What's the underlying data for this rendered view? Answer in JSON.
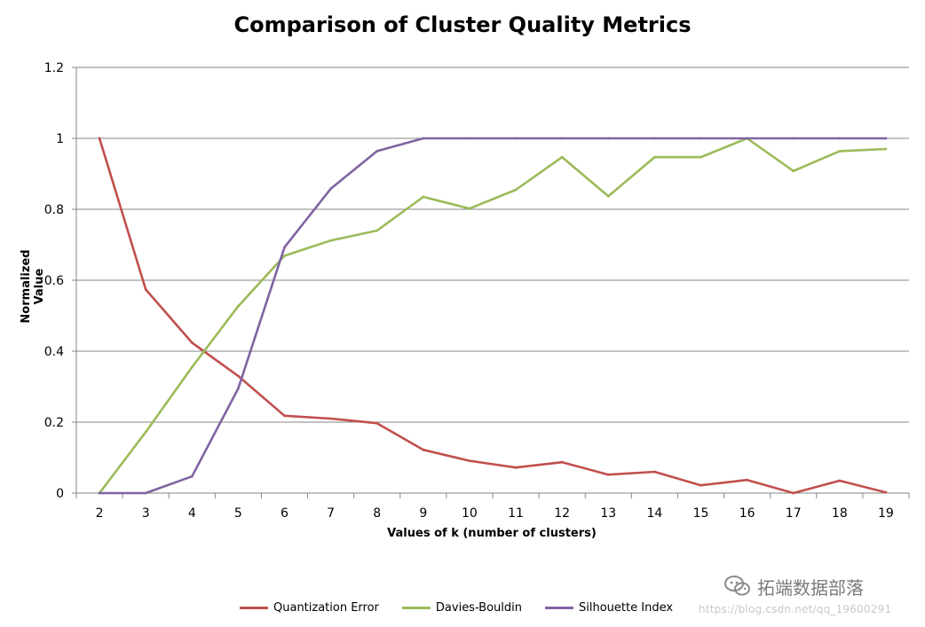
{
  "chart_data": {
    "type": "line",
    "title": "Comparison of Cluster Quality Metrics",
    "xlabel": "Values of k (number of clusters)",
    "ylabel": "Normalized Value",
    "ylim": [
      0,
      1.2
    ],
    "yticks": [
      0,
      0.2,
      0.4,
      0.6,
      0.8,
      1,
      1.2
    ],
    "ytick_labels": [
      "0",
      "0.2",
      "0.4",
      "0.6",
      "0.8",
      "1",
      "1.2"
    ],
    "grid": true,
    "legend_position": "bottom",
    "categories": [
      "2",
      "3",
      "4",
      "5",
      "6",
      "7",
      "8",
      "9",
      "10",
      "11",
      "12",
      "13",
      "14",
      "15",
      "16",
      "17",
      "18",
      "19"
    ],
    "series": [
      {
        "name": "Quantization Error",
        "color": "#C0504D",
        "values": [
          1,
          0.574,
          0.424,
          0.33,
          0.218,
          0.21,
          0.197,
          0.122,
          0.091,
          0.072,
          0.087,
          0.052,
          0.06,
          0.022,
          0.037,
          0.0,
          0.035,
          0.002
        ]
      },
      {
        "name": "Davies-Bouldin",
        "color": "#9BBB59",
        "values": [
          0,
          0.172,
          0.355,
          0.527,
          0.669,
          0.712,
          0.74,
          0.835,
          0.802,
          0.855,
          0.947,
          0.837,
          0.947,
          0.947,
          1,
          0.908,
          0.964,
          0.97
        ]
      },
      {
        "name": "Silhouette Index",
        "color": "#8064A2",
        "values": [
          0,
          0,
          0.047,
          0.295,
          0.693,
          0.858,
          0.964,
          1,
          1,
          1,
          1,
          1,
          1,
          1,
          1,
          1,
          1,
          1
        ]
      }
    ],
    "grid_color": "#868686",
    "axis_color": "#868686"
  },
  "watermark": {
    "brand": "拓端数据部落",
    "url": "https://blog.csdn.net/qq_19600291"
  },
  "icons": {
    "watermark_logo": "wechat-icon"
  }
}
